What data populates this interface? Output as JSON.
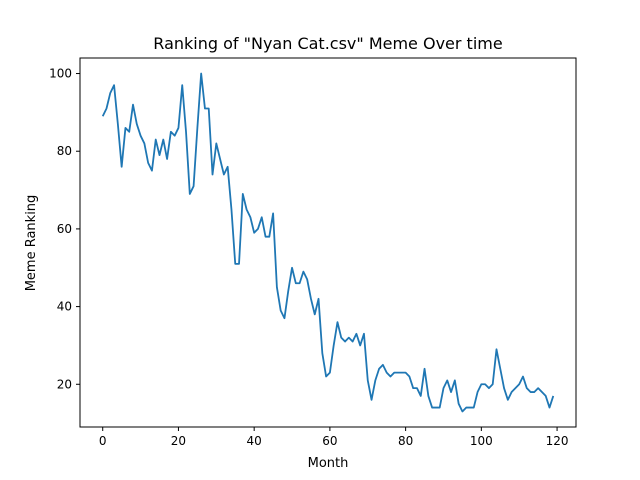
{
  "chart_data": {
    "type": "line",
    "title": "Ranking of \"Nyan Cat.csv\" Meme Over time",
    "xlabel": "Month",
    "ylabel": "Meme Ranking",
    "xlim": [
      -6,
      125
    ],
    "ylim": [
      9,
      104
    ],
    "xticks": [
      0,
      20,
      40,
      60,
      80,
      100,
      120
    ],
    "yticks": [
      20,
      40,
      60,
      80,
      100
    ],
    "grid": false,
    "series": [
      {
        "color": "#1f77b4",
        "x": [
          0,
          1,
          2,
          3,
          4,
          5,
          6,
          7,
          8,
          9,
          10,
          11,
          12,
          13,
          14,
          15,
          16,
          17,
          18,
          19,
          20,
          21,
          22,
          23,
          24,
          25,
          26,
          27,
          28,
          29,
          30,
          31,
          32,
          33,
          34,
          35,
          36,
          37,
          38,
          39,
          40,
          41,
          42,
          43,
          44,
          45,
          46,
          47,
          48,
          49,
          50,
          51,
          52,
          53,
          54,
          55,
          56,
          57,
          58,
          59,
          60,
          61,
          62,
          63,
          64,
          65,
          66,
          67,
          68,
          69,
          70,
          71,
          72,
          73,
          74,
          75,
          76,
          77,
          78,
          79,
          80,
          81,
          82,
          83,
          84,
          85,
          86,
          87,
          88,
          89,
          90,
          91,
          92,
          93,
          94,
          95,
          96,
          97,
          98,
          99,
          100,
          101,
          102,
          103,
          104,
          105,
          106,
          107,
          108,
          109,
          110,
          111,
          112,
          113,
          114,
          115,
          116,
          117,
          118,
          119
        ],
        "y": [
          89,
          91,
          95,
          97,
          87,
          76,
          86,
          85,
          92,
          87,
          84,
          82,
          77,
          75,
          83,
          79,
          83,
          78,
          85,
          84,
          86,
          97,
          85,
          69,
          71,
          86,
          100,
          91,
          91,
          74,
          82,
          78,
          74,
          76,
          65,
          51,
          51,
          69,
          65,
          63,
          59,
          60,
          63,
          58,
          58,
          64,
          45,
          39,
          37,
          44,
          50,
          46,
          46,
          49,
          47,
          42,
          38,
          42,
          28,
          22,
          23,
          30,
          36,
          32,
          31,
          32,
          31,
          33,
          30,
          33,
          21,
          16,
          21,
          24,
          25,
          23,
          22,
          23,
          23,
          23,
          23,
          22,
          19,
          19,
          17,
          24,
          17,
          14,
          14,
          14,
          19,
          21,
          18,
          21,
          15,
          13,
          14,
          14,
          14,
          18,
          20,
          20,
          19,
          20,
          29,
          24,
          19,
          16,
          18,
          19,
          20,
          22,
          19,
          18,
          18,
          19,
          18,
          17,
          14,
          17
        ]
      }
    ]
  }
}
